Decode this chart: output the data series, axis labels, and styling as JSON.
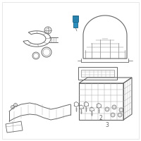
{
  "bg_color": "#ffffff",
  "border_color": "#dddddd",
  "highlight_color": "#2a8fbf",
  "highlight_dark": "#1a5f80",
  "line_color": "#aaaaaa",
  "dark_line": "#666666",
  "mid_line": "#888888"
}
